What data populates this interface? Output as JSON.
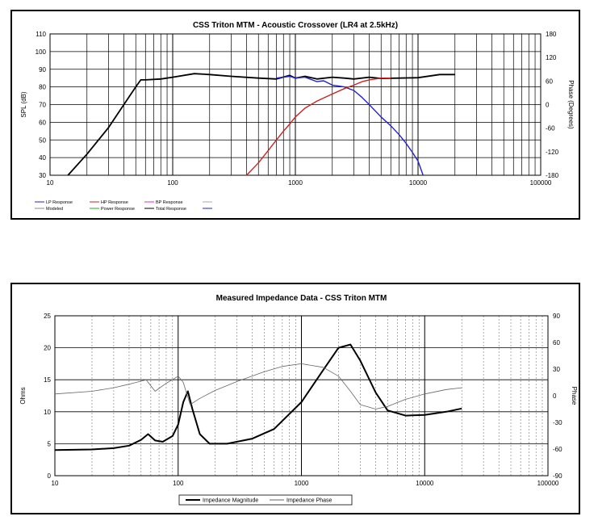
{
  "chart_data": [
    {
      "type": "line",
      "title": "CSS Triton MTM - Acoustic Crossover (LR4 at 2.5kHz)",
      "xlabel": "",
      "ylabel": "SPL (dB)",
      "y2label": "Phase (Degrees)",
      "x_scale": "log",
      "xlim": [
        10,
        100000
      ],
      "ylim": [
        30,
        110
      ],
      "y2lim": [
        -180,
        180
      ],
      "x_ticks": [
        "10",
        "100",
        "1000",
        "10000",
        "100000"
      ],
      "y_ticks": [
        "110",
        "100",
        "90",
        "80",
        "70",
        "60",
        "50",
        "40",
        "30"
      ],
      "y2_ticks": [
        "180",
        "120",
        "60",
        "0",
        "-60",
        "-120",
        "-180"
      ],
      "grid": true,
      "legend_position": "bottom-left",
      "legend": [
        {
          "label": "LP Response",
          "color": "#2222cc"
        },
        {
          "label": "HP Response",
          "color": "#cc2222"
        },
        {
          "label": "BP Response",
          "color": "#cc33cc"
        },
        {
          "label": "",
          "color": "#aaaaaa"
        },
        {
          "label": "Modeled",
          "color": "#888888"
        },
        {
          "label": "Power Response",
          "color": "#22aa22"
        },
        {
          "label": "Total Response",
          "color": "#000000"
        },
        {
          "label": "",
          "color": "#2222cc"
        }
      ],
      "series": [
        {
          "name": "Total Response",
          "color": "#000000",
          "x": [
            14,
            20,
            30,
            40,
            50,
            55,
            60,
            80,
            100,
            150,
            200,
            300,
            500,
            700,
            900,
            1000,
            1200,
            1500,
            2000,
            2500,
            3000,
            4000,
            5000,
            7000,
            10000,
            15000,
            20000
          ],
          "y": [
            30,
            42,
            57,
            70,
            80,
            84,
            84,
            84.5,
            85.5,
            87.5,
            87,
            86,
            85,
            84.5,
            86.5,
            85,
            86,
            84.5,
            85.5,
            85,
            84.5,
            85.5,
            84.8,
            85,
            85.2,
            87,
            87
          ]
        },
        {
          "name": "LP Response",
          "color": "#2222cc",
          "x": [
            700,
            900,
            1000,
            1200,
            1500,
            1700,
            2000,
            2500,
            3000,
            3500,
            4000,
            5000,
            6000,
            7000,
            8000,
            9000,
            10000,
            11000
          ],
          "y": [
            85,
            86,
            85,
            85.5,
            83,
            83.5,
            81,
            80,
            78,
            74,
            70,
            63,
            58,
            53,
            48,
            43,
            38,
            30
          ]
        },
        {
          "name": "HP Response",
          "color": "#cc2222",
          "x": [
            400,
            500,
            600,
            700,
            800,
            900,
            1000,
            1200,
            1500,
            2000,
            2500,
            3000,
            3500,
            4000,
            5000,
            6000
          ],
          "y": [
            30,
            37,
            44,
            50,
            55,
            59,
            63,
            68,
            72,
            76,
            79,
            81,
            83,
            84,
            85,
            85
          ]
        }
      ]
    },
    {
      "type": "line",
      "title": "Measured Impedance Data - CSS Triton MTM",
      "xlabel": "",
      "ylabel": "Ohms",
      "y2label": "Phase",
      "x_scale": "log",
      "xlim": [
        10,
        100000
      ],
      "ylim": [
        0,
        25
      ],
      "y2lim": [
        -90,
        90
      ],
      "x_ticks": [
        "10",
        "100",
        "1000",
        "10000",
        "100000"
      ],
      "y_ticks": [
        "25",
        "20",
        "15",
        "10",
        "5",
        "0"
      ],
      "y2_ticks": [
        "90",
        "60",
        "30",
        "0",
        "-30",
        "-60",
        "-90"
      ],
      "grid": true,
      "legend_position": "bottom-center",
      "legend": [
        {
          "label": "Impedance Magnitude",
          "color": "#000000"
        },
        {
          "label": "Impedance Phase",
          "color": "#666666"
        }
      ],
      "series": [
        {
          "name": "Impedance Magnitude",
          "color": "#000000",
          "x": [
            10,
            20,
            30,
            40,
            50,
            57,
            65,
            75,
            90,
            100,
            110,
            120,
            130,
            150,
            180,
            250,
            400,
            600,
            1000,
            1500,
            2000,
            2500,
            3000,
            4000,
            5000,
            7000,
            10000,
            15000,
            20000
          ],
          "y": [
            4,
            4.1,
            4.3,
            4.7,
            5.6,
            6.5,
            5.5,
            5.3,
            6.2,
            8,
            11.5,
            13.2,
            10.5,
            6.5,
            5,
            5,
            5.8,
            7.3,
            11.5,
            16.5,
            20,
            20.5,
            18,
            13,
            10.2,
            9.4,
            9.5,
            10,
            10.5
          ]
        },
        {
          "name": "Impedance Phase",
          "color": "#666666",
          "x": [
            10,
            20,
            30,
            40,
            55,
            65,
            80,
            100,
            110,
            125,
            150,
            200,
            300,
            500,
            700,
            1000,
            1500,
            2000,
            2500,
            3000,
            4000,
            5000,
            7000,
            10000,
            15000,
            20000
          ],
          "y": [
            2,
            5,
            9,
            13,
            18,
            5,
            14,
            22,
            15,
            -10,
            -3,
            6,
            16,
            27,
            33,
            36,
            32,
            22,
            5,
            -10,
            -15,
            -12,
            -4,
            2,
            7,
            9
          ]
        }
      ]
    }
  ]
}
